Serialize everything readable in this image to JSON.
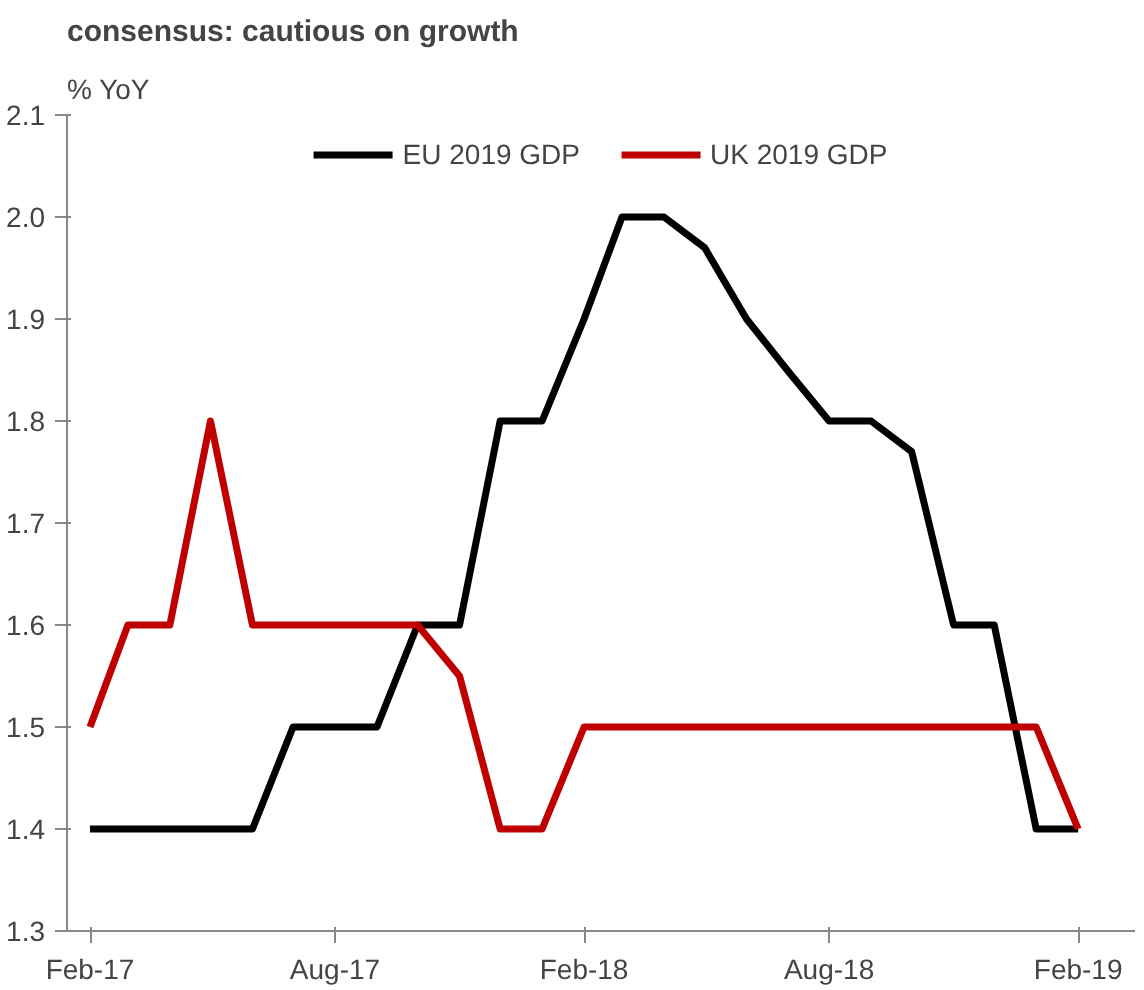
{
  "chart_data": {
    "type": "line",
    "title": "consensus: cautious on growth",
    "ylabel": "% YoY",
    "x": [
      "2017-02",
      "2017-03",
      "2017-04",
      "2017-05",
      "2017-06",
      "2017-07",
      "2017-08",
      "2017-09",
      "2017-10",
      "2017-11",
      "2017-12",
      "2018-01",
      "2018-02",
      "2018-03",
      "2018-04",
      "2018-05",
      "2018-06",
      "2018-07",
      "2018-08",
      "2018-09",
      "2018-10",
      "2018-11",
      "2018-12",
      "2019-01",
      "2019-02"
    ],
    "series": [
      {
        "name": "EU 2019 GDP",
        "color": "#000000",
        "values": [
          1.4,
          1.4,
          1.4,
          1.4,
          1.4,
          1.5,
          1.5,
          1.5,
          1.6,
          1.6,
          1.8,
          1.8,
          1.9,
          2.0,
          2.0,
          1.97,
          1.9,
          1.85,
          1.8,
          1.8,
          1.77,
          1.6,
          1.6,
          1.4,
          1.4
        ]
      },
      {
        "name": "UK 2019 GDP",
        "color": "#c00000",
        "values": [
          1.5,
          1.6,
          1.6,
          1.8,
          1.6,
          1.6,
          1.6,
          1.6,
          1.6,
          1.55,
          1.4,
          1.4,
          1.5,
          1.5,
          1.5,
          1.5,
          1.5,
          1.5,
          1.5,
          1.5,
          1.5,
          1.5,
          1.5,
          1.5,
          1.4
        ]
      }
    ],
    "xlim": [
      "2017-01-15",
      "2019-03-15"
    ],
    "xticks": [
      {
        "value": "2017-02",
        "label": "Feb-17"
      },
      {
        "value": "2017-08",
        "label": "Aug-17"
      },
      {
        "value": "2018-02",
        "label": "Feb-18"
      },
      {
        "value": "2018-08",
        "label": "Aug-18"
      },
      {
        "value": "2019-02",
        "label": "Feb-19"
      }
    ],
    "ylim": [
      1.3,
      2.1
    ],
    "yticks": [
      1.3,
      1.4,
      1.5,
      1.6,
      1.7,
      1.8,
      1.9,
      {
        "value": 2,
        "label": "2.0"
      },
      2.1
    ],
    "legend": "top",
    "grid": false,
    "marker": "none",
    "line_style": "solid"
  }
}
